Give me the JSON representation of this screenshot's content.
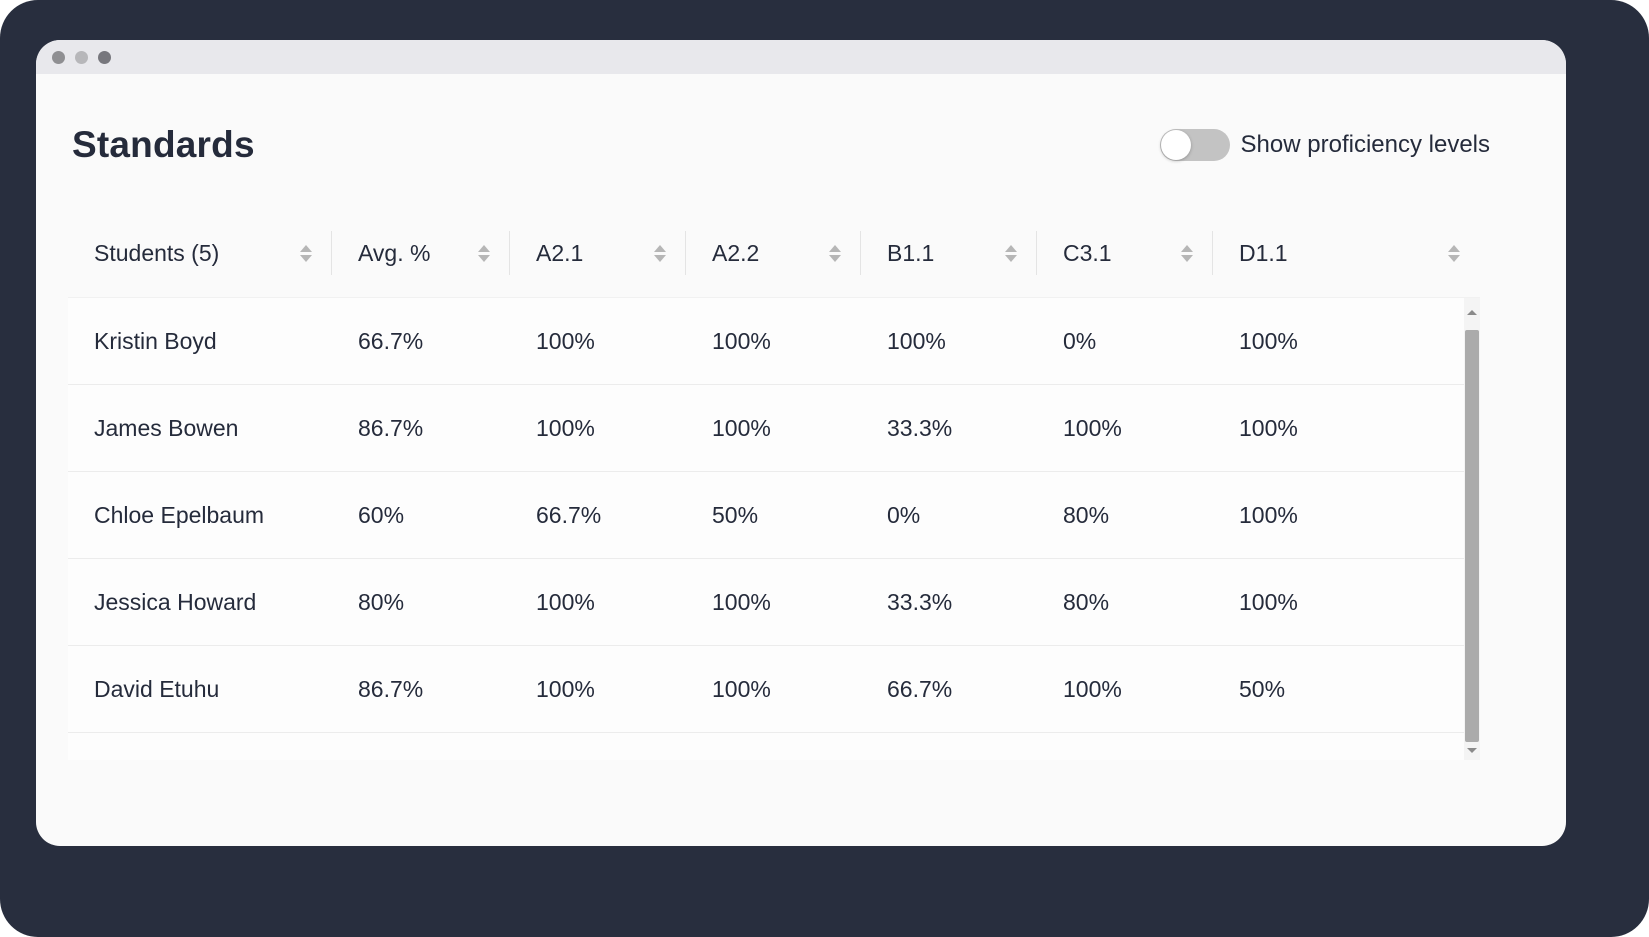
{
  "header": {
    "title": "Standards",
    "toggle_label": "Show proficiency levels",
    "toggle_state": "off"
  },
  "table": {
    "columns": [
      {
        "label": "Students (5)",
        "sortable": true
      },
      {
        "label": "Avg. %",
        "sortable": true
      },
      {
        "label": "A2.1",
        "sortable": true
      },
      {
        "label": "A2.2",
        "sortable": true
      },
      {
        "label": "B1.1",
        "sortable": true
      },
      {
        "label": "C3.1",
        "sortable": true
      },
      {
        "label": "D1.1",
        "sortable": true
      }
    ],
    "rows": [
      {
        "student": "Kristin Boyd",
        "values": [
          "66.7%",
          "100%",
          "100%",
          "100%",
          "0%",
          "100%"
        ]
      },
      {
        "student": "James Bowen",
        "values": [
          "86.7%",
          "100%",
          "100%",
          "33.3%",
          "100%",
          "100%"
        ]
      },
      {
        "student": "Chloe Epelbaum",
        "values": [
          "60%",
          "66.7%",
          "50%",
          "0%",
          "80%",
          "100%"
        ]
      },
      {
        "student": "Jessica Howard",
        "values": [
          "80%",
          "100%",
          "100%",
          "33.3%",
          "80%",
          "100%"
        ]
      },
      {
        "student": "David Etuhu",
        "values": [
          "86.7%",
          "100%",
          "100%",
          "66.7%",
          "100%",
          "50%"
        ]
      }
    ]
  },
  "icons": {
    "sort": "sort-updown-arrows",
    "scrollbar_up": "chevron-up",
    "scrollbar_down": "chevron-down"
  },
  "colors": {
    "backdrop": "#282e3e",
    "window_bg": "#fafafa",
    "titlebar_bg": "#e8e8ec",
    "table_bg": "#fdfdfd",
    "text": "#252b3b",
    "divider": "#ececec",
    "header_divider": "#e4e4e4",
    "sort_icon": "#b6b6b6",
    "toggle_off": "#c3c3c3",
    "scrollbar_track": "#f4f4f4",
    "scrollbar_thumb": "#ababab",
    "scrollbar_arrow": "#8a8a8a"
  }
}
